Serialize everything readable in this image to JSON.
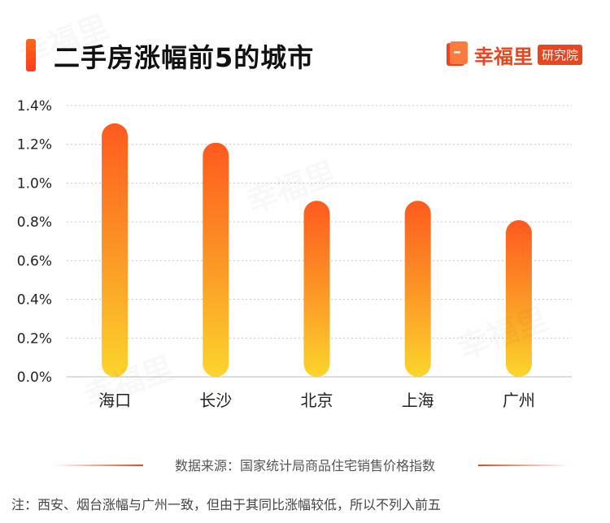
{
  "header": {
    "title": "二手房涨幅前5的城市",
    "brand_name": "幸福里",
    "brand_tag": "研究院",
    "logo_icon": "book-logo-icon"
  },
  "colors": {
    "accent": "#e8461e",
    "bar_top": "#ff5a1f",
    "bar_bottom": "#fbd52c",
    "grid": "#c8c8c8",
    "axis_text": "#222222"
  },
  "chart_data": {
    "type": "bar",
    "categories": [
      "海口",
      "长沙",
      "北京",
      "上海",
      "广州"
    ],
    "values": [
      1.3,
      1.2,
      0.9,
      0.9,
      0.8
    ],
    "value_unit": "%",
    "yticks": [
      "0.0%",
      "0.2%",
      "0.4%",
      "0.6%",
      "0.8%",
      "1.0%",
      "1.2%",
      "1.4%"
    ],
    "ylim": [
      0,
      1.4
    ],
    "title": "二手房涨幅前5的城市",
    "xlabel": "",
    "ylabel": "",
    "grid": true,
    "legend": "none"
  },
  "footer": {
    "source": "数据来源：国家统计局商品住宅销售价格指数",
    "note": "注：西安、烟台涨幅与广州一致，但由于其同比涨幅较低，所以不列入前五"
  }
}
